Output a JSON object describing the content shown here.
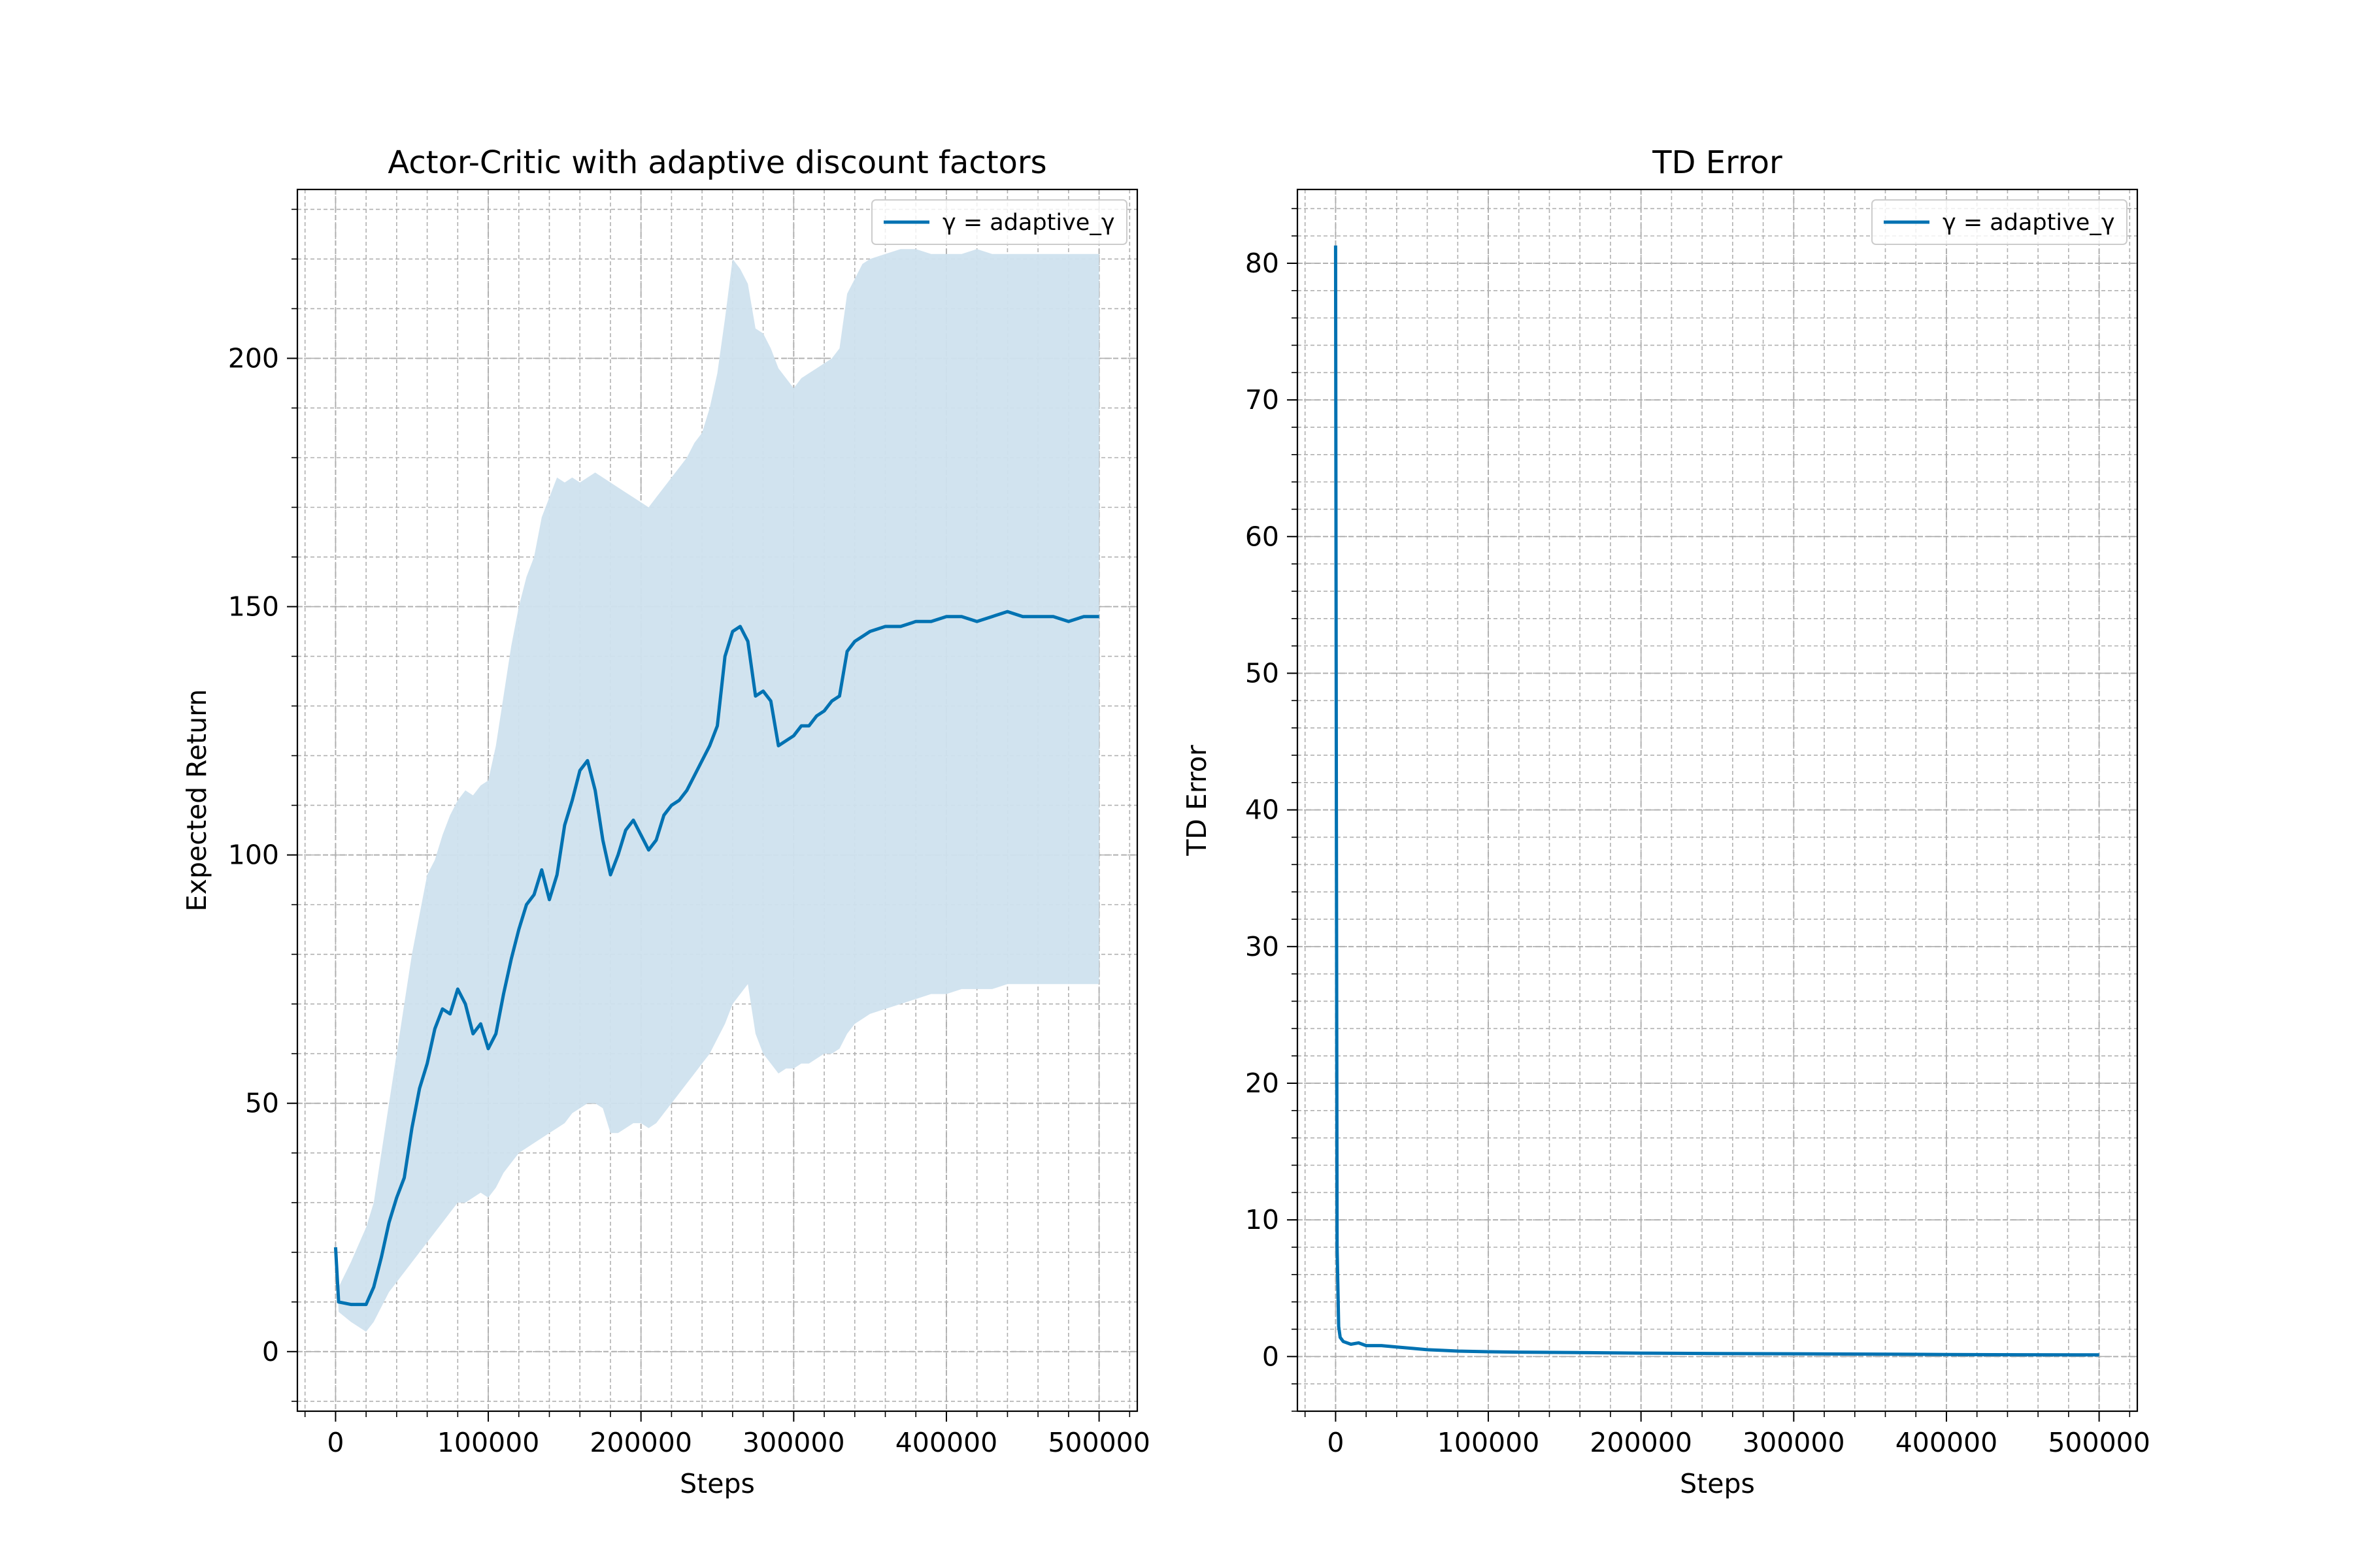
{
  "colors": {
    "line": "#0072b2",
    "band": "#cfe2ee",
    "grid": "#b0b0b0",
    "axes": "#000000",
    "background": "#ffffff"
  },
  "chart_data": [
    {
      "type": "line",
      "title": "Actor-Critic with adaptive discount factors",
      "xlabel": "Steps",
      "ylabel": "Expected Return",
      "xlim": [
        -25000,
        525000
      ],
      "ylim": [
        -12,
        234
      ],
      "xticks": [
        0,
        100000,
        200000,
        300000,
        400000,
        500000
      ],
      "xtick_labels": [
        "0",
        "100000",
        "200000",
        "300000",
        "400000",
        "500000"
      ],
      "yticks": [
        0,
        50,
        100,
        150,
        200
      ],
      "ytick_labels": [
        "0",
        "50",
        "100",
        "150",
        "200"
      ],
      "x_minor_step": 20000,
      "y_minor_step": 10,
      "grid": true,
      "legend_position": "top-right",
      "series": [
        {
          "name": "γ = adaptive_γ",
          "x": [
            0,
            2000,
            10000,
            20000,
            25000,
            30000,
            35000,
            40000,
            45000,
            50000,
            55000,
            60000,
            65000,
            70000,
            75000,
            80000,
            85000,
            90000,
            95000,
            100000,
            105000,
            110000,
            115000,
            120000,
            125000,
            130000,
            135000,
            140000,
            145000,
            150000,
            155000,
            160000,
            165000,
            170000,
            175000,
            180000,
            185000,
            190000,
            195000,
            200000,
            205000,
            210000,
            215000,
            220000,
            225000,
            230000,
            235000,
            240000,
            245000,
            250000,
            255000,
            260000,
            265000,
            270000,
            275000,
            280000,
            285000,
            290000,
            295000,
            300000,
            305000,
            310000,
            315000,
            320000,
            325000,
            330000,
            335000,
            340000,
            345000,
            350000,
            360000,
            370000,
            380000,
            390000,
            400000,
            410000,
            420000,
            430000,
            440000,
            450000,
            460000,
            470000,
            480000,
            490000,
            500000
          ],
          "values": [
            21,
            10,
            9.5,
            9.5,
            13,
            19,
            26,
            31,
            35,
            45,
            53,
            58,
            65,
            69,
            68,
            73,
            70,
            64,
            66,
            61,
            64,
            72,
            79,
            85,
            90,
            92,
            97,
            91,
            96,
            106,
            111,
            117,
            119,
            113,
            103,
            96,
            100,
            105,
            107,
            104,
            101,
            103,
            108,
            110,
            111,
            113,
            116,
            119,
            122,
            126,
            140,
            145,
            146,
            143,
            132,
            133,
            131,
            122,
            123,
            124,
            126,
            126,
            128,
            129,
            131,
            132,
            141,
            143,
            144,
            145,
            146,
            146,
            147,
            147,
            148,
            148,
            147,
            148,
            149,
            148,
            148,
            148,
            147,
            148,
            148
          ],
          "band_upper": [
            22,
            13,
            18,
            25,
            30,
            40,
            50,
            60,
            70,
            80,
            88,
            96,
            99,
            104,
            108,
            111,
            113,
            112,
            114,
            115,
            122,
            132,
            142,
            150,
            156,
            160,
            168,
            172,
            176,
            175,
            176,
            175,
            176,
            177,
            176,
            175,
            174,
            173,
            172,
            171,
            170,
            172,
            174,
            176,
            178,
            180,
            183,
            185,
            190,
            197,
            208,
            220,
            218,
            215,
            206,
            205,
            202,
            198,
            196,
            194,
            196,
            197,
            198,
            199,
            200,
            202,
            213,
            216,
            219,
            220,
            221,
            222,
            222,
            221,
            221,
            221,
            222,
            221,
            221,
            221,
            221,
            221,
            221,
            221,
            221
          ],
          "band_lower": [
            21,
            8,
            6,
            4,
            6,
            9,
            12,
            14,
            16,
            18,
            20,
            22,
            24,
            26,
            28,
            30,
            30,
            31,
            32,
            31,
            33,
            36,
            38,
            40,
            41,
            42,
            43,
            44,
            45,
            46,
            48,
            49,
            50,
            50,
            49,
            44,
            44,
            45,
            46,
            46,
            45,
            46,
            48,
            50,
            52,
            54,
            56,
            58,
            60,
            63,
            66,
            70,
            72,
            74,
            64,
            60,
            58,
            56,
            57,
            57,
            58,
            58,
            59,
            60,
            60,
            61,
            64,
            66,
            67,
            68,
            69,
            70,
            71,
            72,
            72,
            73,
            73,
            73,
            74,
            74,
            74,
            74,
            74,
            74,
            74
          ]
        }
      ]
    },
    {
      "type": "line",
      "title": "TD Error",
      "xlabel": "Steps",
      "ylabel": "TD Error",
      "xlim": [
        -25000,
        525000
      ],
      "ylim": [
        -4,
        85.4
      ],
      "xticks": [
        0,
        100000,
        200000,
        300000,
        400000,
        500000
      ],
      "xtick_labels": [
        "0",
        "100000",
        "200000",
        "300000",
        "400000",
        "500000"
      ],
      "yticks": [
        0,
        10,
        20,
        30,
        40,
        50,
        60,
        70,
        80
      ],
      "ytick_labels": [
        "0",
        "10",
        "20",
        "30",
        "40",
        "50",
        "60",
        "70",
        "80"
      ],
      "x_minor_step": 20000,
      "y_minor_step": 2,
      "grid": true,
      "legend_position": "top-right",
      "series": [
        {
          "name": "γ = adaptive_γ",
          "x": [
            0,
            500,
            1000,
            2000,
            3000,
            5000,
            10000,
            15000,
            20000,
            30000,
            40000,
            50000,
            60000,
            70000,
            80000,
            100000,
            120000,
            150000,
            200000,
            250000,
            300000,
            350000,
            400000,
            450000,
            500000
          ],
          "values": [
            81.3,
            40,
            8,
            2.2,
            1.4,
            1.1,
            0.9,
            1.0,
            0.8,
            0.8,
            0.7,
            0.6,
            0.5,
            0.45,
            0.4,
            0.35,
            0.32,
            0.3,
            0.25,
            0.22,
            0.2,
            0.18,
            0.15,
            0.13,
            0.12
          ]
        }
      ]
    }
  ]
}
